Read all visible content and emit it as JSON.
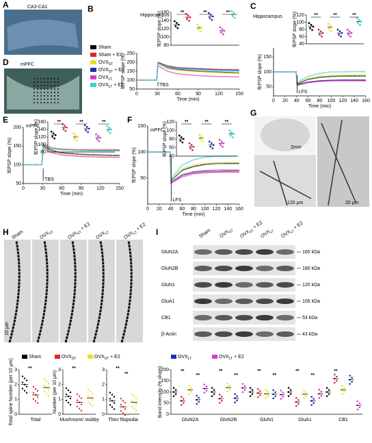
{
  "groups": [
    {
      "name": "Sham",
      "color": "#000000"
    },
    {
      "name": "Sham + E2",
      "color": "#e0262b"
    },
    {
      "name": "OVX",
      "sub": "ST",
      "color": "#e8e020"
    },
    {
      "name": "OVX",
      "sub": "ST",
      "suffix": " + E2",
      "color": "#1f2fb0"
    },
    {
      "name": "OVX",
      "sub": "LT",
      "color": "#d63ad0"
    },
    {
      "name": "OVX",
      "sub": "LT",
      "suffix": " + E2",
      "color": "#2fd6d0"
    }
  ],
  "images": [
    {
      "label": "A",
      "title": "CA3-CA1"
    },
    {
      "label": "D",
      "title": "mPFC"
    },
    {
      "label": "G",
      "scales": [
        "2mm",
        "120 μm",
        "20 μm"
      ]
    }
  ],
  "time_courses": [
    {
      "label": "B",
      "title": "Hippocampus",
      "stim": "TBS",
      "xlabel": "Time (min)",
      "ylabel": "fEPSP slope (%)",
      "xlim": [
        0,
        150
      ],
      "ylim": [
        50,
        250
      ],
      "xticks": [
        0,
        30,
        60,
        90,
        120,
        150
      ],
      "yticks": [
        50,
        100,
        150,
        200,
        250
      ],
      "x": [
        0,
        15,
        29,
        31,
        45,
        60,
        90,
        120,
        150
      ],
      "series": [
        [
          100,
          100,
          100,
          195,
          170,
          160,
          150,
          145,
          140
        ],
        [
          100,
          100,
          100,
          200,
          180,
          170,
          165,
          160,
          158
        ],
        [
          100,
          100,
          100,
          190,
          165,
          155,
          148,
          142,
          138
        ],
        [
          100,
          100,
          100,
          198,
          178,
          168,
          162,
          158,
          155
        ],
        [
          100,
          100,
          100,
          180,
          150,
          135,
          125,
          120,
          118
        ],
        [
          100,
          100,
          100,
          195,
          175,
          165,
          158,
          152,
          150
        ]
      ],
      "inset": {
        "ylabel": "fEPSP slope (%)",
        "ylim": [
          80,
          160
        ],
        "yticks": [
          80,
          100,
          120,
          140,
          160
        ],
        "means": [
          130,
          148,
          122,
          150,
          115,
          155
        ],
        "stars": [
          "**",
          "**",
          "**"
        ]
      }
    },
    {
      "label": "C",
      "title": "Hippocampus",
      "stim": "LFS",
      "xlabel": "Time (min)",
      "ylabel": "fEPSP slope (%)",
      "xlim": [
        0,
        160
      ],
      "ylim": [
        20,
        180
      ],
      "xticks": [
        0,
        20,
        40,
        60,
        80,
        100,
        120,
        140,
        160
      ],
      "yticks": [
        50,
        100,
        150
      ],
      "x": [
        0,
        20,
        39,
        41,
        60,
        80,
        100,
        120,
        140,
        160
      ],
      "series": [
        [
          100,
          100,
          100,
          60,
          75,
          82,
          85,
          86,
          86,
          86
        ],
        [
          100,
          100,
          100,
          55,
          65,
          70,
          72,
          72,
          72,
          72
        ],
        [
          100,
          100,
          100,
          62,
          78,
          85,
          88,
          89,
          90,
          90
        ],
        [
          100,
          100,
          100,
          58,
          66,
          70,
          72,
          73,
          73,
          73
        ],
        [
          100,
          100,
          100,
          56,
          64,
          68,
          70,
          70,
          70,
          70
        ],
        [
          100,
          100,
          100,
          65,
          85,
          95,
          100,
          100,
          101,
          101
        ]
      ],
      "inset": {
        "ylabel": "fEPSP slope (%)",
        "ylim": [
          40,
          120
        ],
        "yticks": [
          40,
          60,
          80,
          100,
          120
        ],
        "means": [
          88,
          70,
          86,
          70,
          70,
          102
        ],
        "stars": [
          "**",
          "**",
          "**"
        ]
      }
    },
    {
      "label": "E",
      "title": "mPFC",
      "stim": "TBS",
      "xlabel": "Time (min)",
      "ylabel": "fEPSP slope (%)",
      "xlim": [
        0,
        150
      ],
      "ylim": [
        50,
        200
      ],
      "xticks": [
        0,
        30,
        60,
        90,
        120,
        150
      ],
      "yticks": [
        50,
        100,
        150,
        200
      ],
      "x": [
        0,
        15,
        29,
        31,
        45,
        60,
        90,
        120,
        150
      ],
      "series": [
        [
          100,
          100,
          100,
          150,
          138,
          132,
          128,
          126,
          125
        ],
        [
          100,
          100,
          100,
          155,
          145,
          142,
          140,
          140,
          140
        ],
        [
          100,
          100,
          100,
          148,
          135,
          128,
          124,
          122,
          121
        ],
        [
          100,
          100,
          100,
          152,
          143,
          140,
          138,
          138,
          138
        ],
        [
          100,
          100,
          100,
          145,
          132,
          126,
          122,
          120,
          120
        ],
        [
          100,
          100,
          100,
          152,
          144,
          140,
          138,
          137,
          137
        ]
      ],
      "inset": {
        "ylabel": "fEPSP slope (%)",
        "ylim": [
          80,
          160
        ],
        "yticks": [
          80,
          100,
          120,
          140,
          160
        ],
        "means": [
          125,
          145,
          120,
          142,
          118,
          140
        ],
        "stars": [
          "**",
          "**",
          "**"
        ]
      }
    },
    {
      "label": "F",
      "title": "mPFC",
      "stim": "LFS",
      "xlabel": "Time (min)",
      "ylabel": "fEPSP slope (%)",
      "xlim": [
        0,
        160
      ],
      "ylim": [
        0,
        150
      ],
      "xticks": [
        0,
        20,
        40,
        60,
        80,
        100,
        120,
        140,
        160
      ],
      "yticks": [
        50,
        100,
        150
      ],
      "x": [
        0,
        20,
        39,
        41,
        60,
        80,
        100,
        120,
        140,
        160
      ],
      "series": [
        [
          100,
          100,
          100,
          45,
          65,
          72,
          76,
          78,
          78,
          78
        ],
        [
          100,
          100,
          100,
          40,
          55,
          60,
          62,
          62,
          63,
          63
        ],
        [
          100,
          100,
          100,
          47,
          67,
          75,
          78,
          79,
          80,
          80
        ],
        [
          100,
          100,
          100,
          42,
          56,
          62,
          64,
          65,
          65,
          65
        ],
        [
          100,
          100,
          100,
          40,
          52,
          58,
          60,
          61,
          61,
          61
        ],
        [
          100,
          100,
          100,
          48,
          75,
          85,
          90,
          92,
          92,
          92
        ]
      ],
      "inset": {
        "ylabel": "fEPSP slope (%)",
        "ylim": [
          40,
          120
        ],
        "yticks": [
          40,
          60,
          80,
          100,
          120
        ],
        "means": [
          80,
          62,
          82,
          66,
          70,
          92
        ],
        "stars": [
          "**",
          "**",
          "**"
        ]
      }
    }
  ],
  "H": {
    "label": "H",
    "columns": [
      {
        "name": "Sham"
      },
      {
        "name": "OVX",
        "sub": "ST"
      },
      {
        "name": "OVX",
        "sub": "ST",
        "suffix": " + E2"
      },
      {
        "name": "OVX",
        "sub": "LT"
      },
      {
        "name": "OVX",
        "sub": "LT",
        "suffix": " + E2"
      }
    ],
    "scale": "10 μm",
    "legend": [
      {
        "name": "Sham",
        "color": "#000000"
      },
      {
        "name": "OVX",
        "sub": "ST",
        "color": "#e0262b"
      },
      {
        "name": "OVX",
        "sub": "ST",
        "suffix": " + E2",
        "color": "#e8e020"
      }
    ],
    "ylim": [
      0,
      3
    ],
    "yticks": [
      0,
      1,
      2,
      3
    ],
    "plots": [
      {
        "category": "Total",
        "ylabel": "Total spine Number (per 10 μm)",
        "means": [
          2.0,
          1.3,
          1.8
        ],
        "stars": [
          "**"
        ]
      },
      {
        "category": "Mushroom/ stubby",
        "ylabel": "Number (per 10 μm)",
        "means": [
          1.2,
          0.8,
          1.1
        ],
        "stars": [
          "**"
        ]
      },
      {
        "category": "Thin/ filopodia",
        "means": [
          0.9,
          0.5,
          0.8
        ],
        "stars": [
          "**",
          "**"
        ]
      }
    ]
  },
  "I": {
    "label": "I",
    "columns": [
      {
        "name": "Sham"
      },
      {
        "name": "OVX",
        "sub": "ST"
      },
      {
        "name": "OVX",
        "sub": "ST",
        "suffix": " + E2"
      },
      {
        "name": "OVX",
        "sub": "LT"
      },
      {
        "name": "OVX",
        "sub": "LT",
        "suffix": " + E2"
      }
    ],
    "rows": [
      {
        "protein": "GluN2A",
        "kda": "165 kDa"
      },
      {
        "protein": "GluN2B",
        "kda": "180 kDa"
      },
      {
        "protein": "GluN1",
        "kda": "120 kDa"
      },
      {
        "protein": "GluA1",
        "kda": "106 kDa"
      },
      {
        "protein": "CB1",
        "kda": "53 kDa"
      },
      {
        "protein": "β-Actin",
        "kda": "43 kDa"
      }
    ],
    "legend": [
      {
        "name": "OVX",
        "sub": "LT",
        "color": "#1f2fb0"
      },
      {
        "name": "OVX",
        "sub": "LT",
        "suffix": " + E2",
        "color": "#d63ad0"
      }
    ],
    "ylabel": "Band intensity (% sham)",
    "ylim": [
      0,
      200
    ],
    "yticks": [
      0,
      50,
      100,
      150,
      200
    ],
    "categories": [
      "GluN2A",
      "GluN2B",
      "GluN1",
      "GluA1",
      "CB1"
    ],
    "series": [
      {
        "color": "#000000",
        "values": [
          100,
          100,
          100,
          100,
          100
        ]
      },
      {
        "color": "#e0262b",
        "values": [
          60,
          70,
          95,
          55,
          160
        ]
      },
      {
        "color": "#e8e020",
        "values": [
          110,
          120,
          92,
          90,
          110
        ]
      },
      {
        "color": "#1f2fb0",
        "values": [
          65,
          72,
          90,
          60,
          155
        ]
      },
      {
        "color": "#d63ad0",
        "values": [
          115,
          118,
          88,
          92,
          40
        ]
      }
    ],
    "stars": [
      "**",
      "**",
      "**",
      "**",
      "**",
      "**",
      "**",
      "**",
      "**"
    ]
  }
}
